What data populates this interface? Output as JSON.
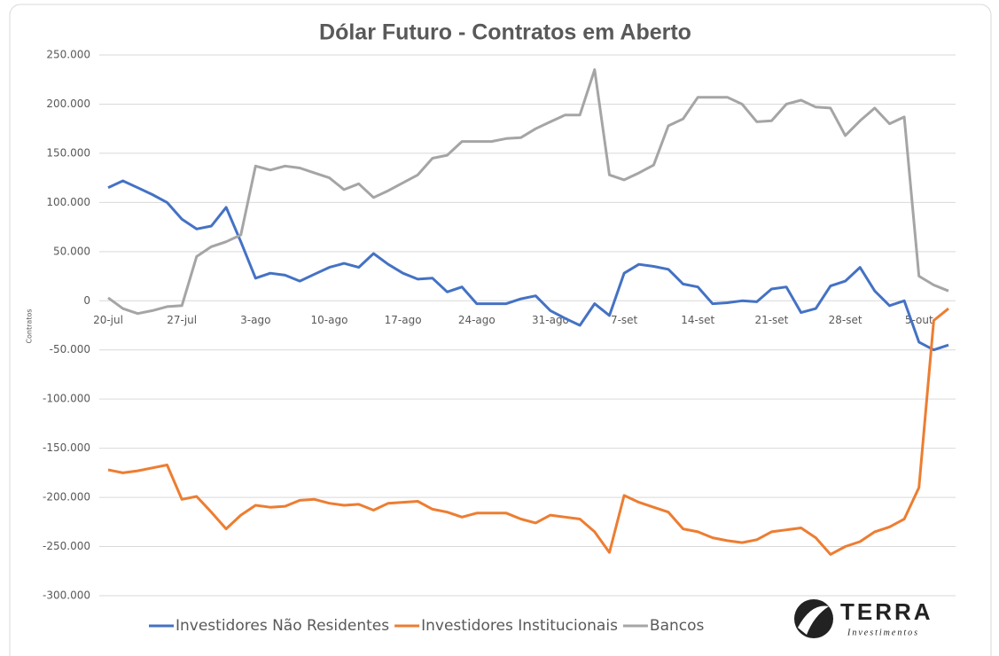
{
  "chart_data": {
    "type": "line",
    "title": "Dólar Futuro - Contratos em Aberto",
    "y_label": "Contratos",
    "categories": [
      "20-jul",
      null,
      null,
      null,
      null,
      "27-jul",
      null,
      null,
      null,
      null,
      "3-ago",
      null,
      null,
      null,
      null,
      "10-ago",
      null,
      null,
      null,
      null,
      "17-ago",
      null,
      null,
      null,
      null,
      "24-ago",
      null,
      null,
      null,
      null,
      "31-ago",
      null,
      null,
      null,
      null,
      "7-set",
      null,
      null,
      null,
      null,
      "14-set",
      null,
      null,
      null,
      null,
      "21-set",
      null,
      null,
      null,
      null,
      "28-set",
      null,
      null,
      null,
      null,
      "5-out",
      null,
      null
    ],
    "series": [
      {
        "name": "Investidores Não Residentes",
        "color": "#4472c4",
        "values": [
          115000,
          122000,
          115000,
          108000,
          100000,
          83000,
          73000,
          76000,
          95000,
          60000,
          23000,
          28000,
          26000,
          20000,
          27000,
          34000,
          38000,
          34000,
          48000,
          37000,
          28000,
          22000,
          23000,
          9000,
          14000,
          -3000,
          -3000,
          -3000,
          2000,
          5000,
          -10000,
          -18000,
          -25000,
          -3000,
          -15000,
          28000,
          37000,
          35000,
          32000,
          17000,
          14000,
          -3000,
          -2000,
          0,
          -1000,
          12000,
          14000,
          -12000,
          -8000,
          15000,
          20000,
          34000,
          10000,
          -5000,
          0,
          -42000,
          -50000,
          -45000
        ]
      },
      {
        "name": "Investidores Institucionais",
        "color": "#ed7d31",
        "values": [
          -172000,
          -175000,
          -173000,
          -170000,
          -167000,
          -202000,
          -199000,
          -215000,
          -232000,
          -218000,
          -208000,
          -210000,
          -209000,
          -203000,
          -202000,
          -206000,
          -208000,
          -207000,
          -213000,
          -206000,
          -205000,
          -204000,
          -212000,
          -215000,
          -220000,
          -216000,
          -216000,
          -216000,
          -222000,
          -226000,
          -218000,
          -220000,
          -222000,
          -235000,
          -256000,
          -198000,
          -205000,
          -210000,
          -215000,
          -232000,
          -235000,
          -241000,
          -244000,
          -246000,
          -243000,
          -235000,
          -233000,
          -231000,
          -241000,
          -258000,
          -250000,
          -245000,
          -235000,
          -230000,
          -222000,
          -190000,
          -20000,
          -8000
        ]
      },
      {
        "name": "Bancos",
        "color": "#a5a5a5",
        "values": [
          3000,
          -8000,
          -13000,
          -10000,
          -6000,
          -5000,
          45000,
          55000,
          60000,
          67000,
          137000,
          133000,
          137000,
          135000,
          130000,
          125000,
          113000,
          119000,
          105000,
          112000,
          120000,
          128000,
          145000,
          148000,
          162000,
          162000,
          162000,
          165000,
          166000,
          175000,
          182000,
          189000,
          189000,
          235000,
          128000,
          123000,
          130000,
          138000,
          178000,
          185000,
          207000,
          207000,
          207000,
          200000,
          182000,
          183000,
          200000,
          204000,
          197000,
          196000,
          168000,
          183000,
          196000,
          180000,
          187000,
          25000,
          16000,
          10000
        ]
      }
    ],
    "ylim": [
      -300000,
      250000
    ],
    "yticks": [
      {
        "value": -300000,
        "label": "-300.000"
      },
      {
        "value": -250000,
        "label": "-250.000"
      },
      {
        "value": -200000,
        "label": "-200.000"
      },
      {
        "value": -150000,
        "label": "-150.000"
      },
      {
        "value": -100000,
        "label": "-100.000"
      },
      {
        "value": -50000,
        "label": "-50.000"
      },
      0,
      {
        "value": 50000,
        "label": "50.000"
      },
      {
        "value": 100000,
        "label": "100.000"
      },
      {
        "value": 150000,
        "label": "150.000"
      },
      {
        "value": 200000,
        "label": "200.000"
      },
      {
        "value": 250000,
        "label": "250.000"
      }
    ],
    "grid": true,
    "legend": "bottom"
  },
  "logo": {
    "name": "TERRA",
    "tagline": "Investimentos"
  }
}
